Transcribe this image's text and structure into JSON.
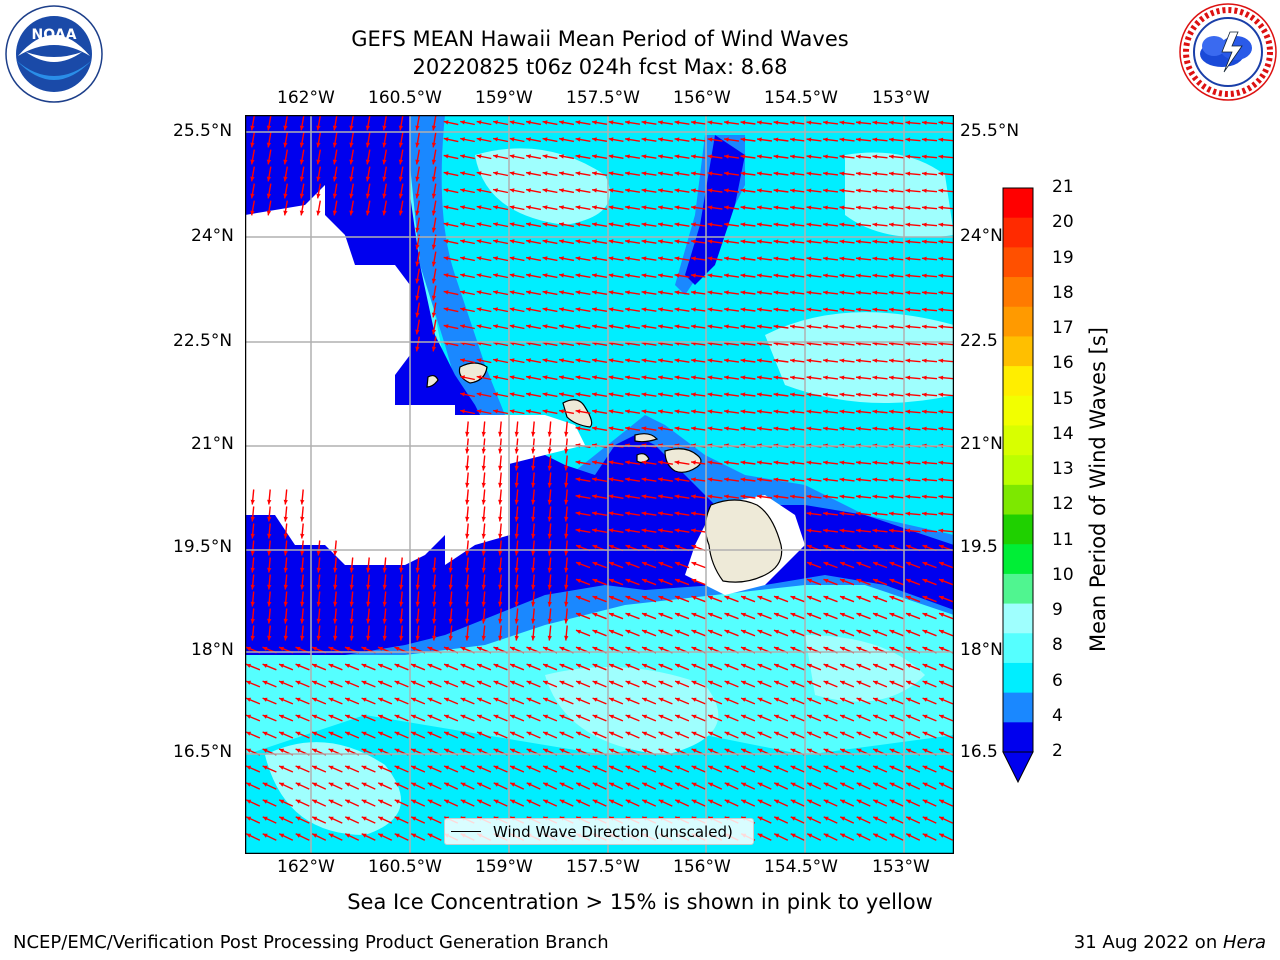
{
  "header": {
    "title_line1": "GEFS MEAN Hawaii Mean Period of Wind Waves",
    "title_line2": "20220825 t06z 024h fcst   Max: 8.68"
  },
  "logos": {
    "left": {
      "icon": "noaa-logo",
      "text": "NOAA",
      "ring_text": "NATIONAL OCEANIC AND ATMOSPHERIC ADMINISTRATION · U.S. DEPARTMENT OF COMMERCE"
    },
    "right": {
      "icon": "nws-logo",
      "ring_text": "NATIONAL WEATHER SERVICE"
    }
  },
  "map": {
    "lon_labels": [
      "162°W",
      "160.5°W",
      "159°W",
      "157.5°W",
      "156°W",
      "154.5°W",
      "153°W"
    ],
    "lat_labels_left": [
      "25.5°N",
      "24°N",
      "22.5°N",
      "21°N",
      "19.5°N",
      "18°N",
      "16.5°N"
    ],
    "lat_labels_right": [
      "25.5°N",
      "24°N",
      "22.5",
      "21°N",
      "19.5",
      "18°N",
      "16.5"
    ],
    "colors": {
      "land": "#eeead8",
      "deep_blue": "#0000ee",
      "mid_blue": "#1a88ff",
      "cyan": "#00eeff",
      "light_cyan": "#55ffff",
      "pale_cyan": "#9ffffe",
      "arrow": "#ff0000",
      "grid": "#b0b0b0"
    },
    "islands": [
      "Kauai",
      "Oahu",
      "Molokai",
      "Lanai",
      "Maui",
      "Hawaii"
    ]
  },
  "legend": {
    "label": "Wind Wave Direction (unscaled)"
  },
  "colorbar": {
    "label": "Mean Period of Wind Waves [s]",
    "ticks": [
      "21",
      "20",
      "19",
      "18",
      "17",
      "16",
      "15",
      "14",
      "13",
      "12",
      "11",
      "10",
      "9",
      "8",
      "6",
      "4",
      "2"
    ],
    "colors": [
      "#ff0000",
      "#ff2a00",
      "#ff5000",
      "#ff7a00",
      "#ff9a00",
      "#ffbf00",
      "#ffee00",
      "#f2ff00",
      "#d8ff00",
      "#bbff00",
      "#7de800",
      "#1fd000",
      "#00ee36",
      "#50f590",
      "#9ffffe",
      "#55ffff",
      "#00eeff",
      "#1a88ff",
      "#0000ee"
    ]
  },
  "subtitle": "Sea Ice Concentration > 15% is shown in pink to yellow",
  "footer": {
    "left": "NCEP/EMC/Verification Post Processing Product Generation Branch",
    "right_prefix": "31 Aug 2022 on ",
    "right_host": "Hera"
  }
}
